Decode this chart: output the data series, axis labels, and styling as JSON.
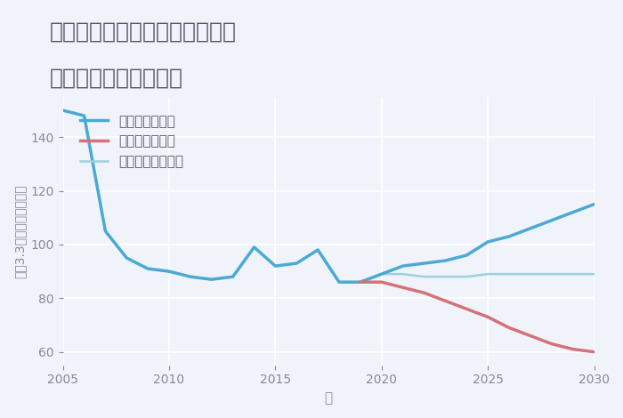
{
  "title_line1": "福岡県北九州市門司区黒川東の",
  "title_line2": "中古戸建ての価格推移",
  "xlabel": "年",
  "ylabel": "坪（3.3㎡）単価（万円）",
  "xlim": [
    2005,
    2030
  ],
  "ylim": [
    55,
    155
  ],
  "yticks": [
    60,
    80,
    100,
    120,
    140
  ],
  "xticks": [
    2005,
    2010,
    2015,
    2020,
    2025,
    2030
  ],
  "background_color": "#f0f4fa",
  "plot_bg_color": "#f0f4fa",
  "grid_color": "#ffffff",
  "good_scenario": {
    "label": "グッドシナリオ",
    "color": "#4baad4",
    "linewidth": 2.5,
    "x": [
      2005,
      2006,
      2007,
      2008,
      2009,
      2010,
      2011,
      2012,
      2013,
      2014,
      2015,
      2016,
      2017,
      2018,
      2019,
      2020,
      2021,
      2022,
      2023,
      2024,
      2025,
      2026,
      2027,
      2028,
      2029,
      2030
    ],
    "y": [
      150,
      148,
      105,
      95,
      91,
      90,
      88,
      87,
      88,
      99,
      92,
      93,
      98,
      86,
      86,
      89,
      92,
      93,
      94,
      96,
      101,
      103,
      106,
      109,
      112,
      115
    ]
  },
  "bad_scenario": {
    "label": "バッドシナリオ",
    "color": "#d4727a",
    "linewidth": 2.5,
    "x": [
      2019,
      2020,
      2021,
      2022,
      2023,
      2024,
      2025,
      2026,
      2027,
      2028,
      2029,
      2030
    ],
    "y": [
      86,
      86,
      84,
      82,
      79,
      76,
      73,
      69,
      66,
      63,
      61,
      60
    ]
  },
  "normal_scenario": {
    "label": "ノーマルシナリオ",
    "color": "#a0cfe0",
    "linewidth": 1.8,
    "x": [
      2005,
      2006,
      2007,
      2008,
      2009,
      2010,
      2011,
      2012,
      2013,
      2014,
      2015,
      2016,
      2017,
      2018,
      2019,
      2020,
      2021,
      2022,
      2023,
      2024,
      2025,
      2026,
      2027,
      2028,
      2029,
      2030
    ],
    "y": [
      150,
      148,
      105,
      95,
      91,
      90,
      88,
      87,
      88,
      99,
      92,
      93,
      98,
      86,
      86,
      89,
      89,
      88,
      88,
      88,
      89,
      89,
      89,
      89,
      89,
      89
    ]
  },
  "title_color": "#555566",
  "title_fontsize": 18,
  "axis_label_color": "#888899",
  "tick_color": "#888899",
  "legend_fontsize": 11
}
